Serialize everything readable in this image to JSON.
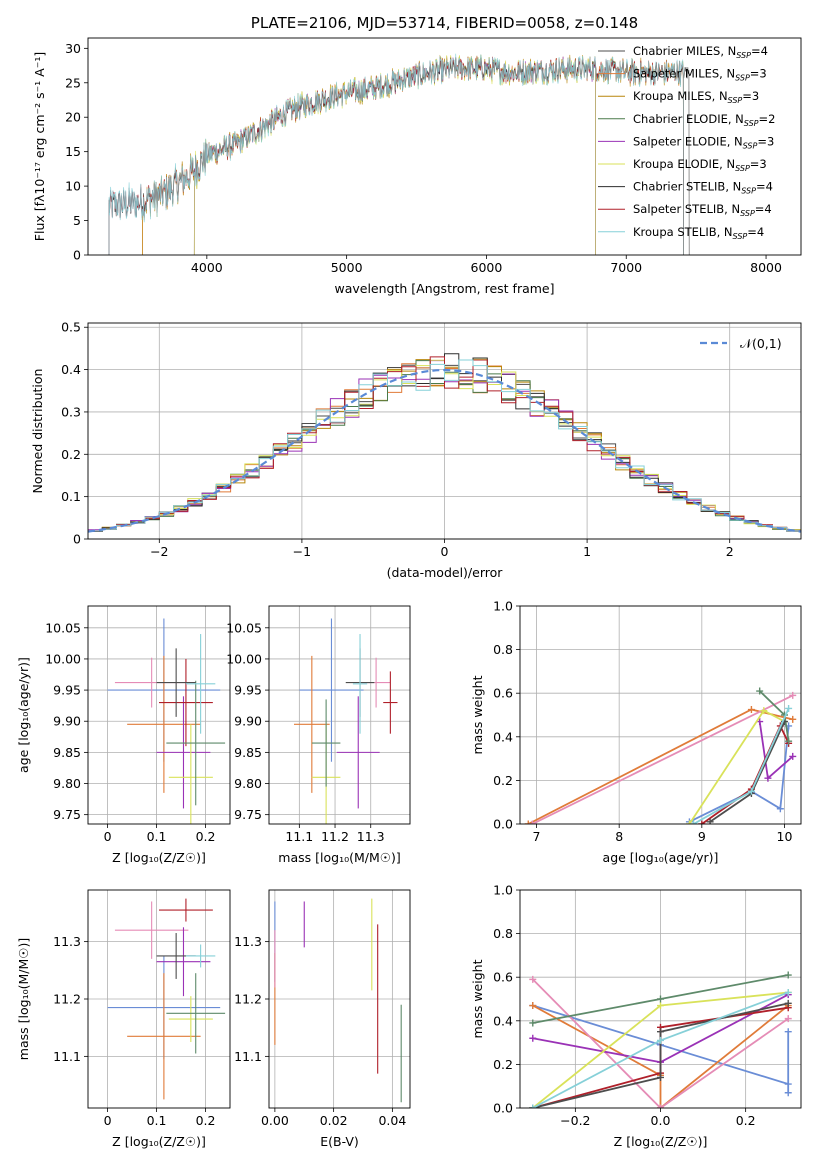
{
  "figure_title": "PLATE=2106, MJD=53714, FIBERID=0058, z=0.148",
  "colors": {
    "series": [
      "#4d4d4d",
      "#e07b39",
      "#b8860b",
      "#4a7a4a",
      "#9a32b6",
      "#d9e25a",
      "#2e2e2e",
      "#b0202a",
      "#86d0d8"
    ],
    "weights": [
      "#6a8dd6",
      "#e07b39",
      "#e58cb6",
      "#9a32b6",
      "#d9e25a",
      "#b0202a",
      "#5e8a6a",
      "#4d4d4d",
      "#86d0d8"
    ],
    "normal_curve": "#5a8ad6"
  },
  "chart_data": [
    {
      "id": "spectrum",
      "type": "line",
      "title": "PLATE=2106, MJD=53714, FIBERID=0058, z=0.148",
      "xlabel": "wavelength [Angstrom, rest frame]",
      "ylabel": "Flux [fλ10⁻¹⁷ erg cm⁻² s⁻¹ A⁻¹]",
      "xlim": [
        3150,
        8250
      ],
      "ylim": [
        0,
        31.5
      ],
      "xticks": [
        4000,
        5000,
        6000,
        7000,
        8000
      ],
      "yticks": [
        0,
        5,
        10,
        15,
        20,
        25,
        30
      ],
      "grid": false,
      "legend_position": "top-right",
      "x_range": [
        3300,
        7450
      ],
      "continuum": [
        [
          3300,
          7.2
        ],
        [
          3500,
          7.5
        ],
        [
          3700,
          9
        ],
        [
          3900,
          12
        ],
        [
          4000,
          14.5
        ],
        [
          4200,
          16
        ],
        [
          4400,
          18.5
        ],
        [
          4600,
          21
        ],
        [
          4800,
          22.5
        ],
        [
          5000,
          23.5
        ],
        [
          5200,
          24.2
        ],
        [
          5400,
          25.5
        ],
        [
          5600,
          26.5
        ],
        [
          5800,
          27.2
        ],
        [
          6000,
          27
        ],
        [
          6200,
          26.5
        ],
        [
          6400,
          26.8
        ],
        [
          6600,
          27
        ],
        [
          6800,
          27
        ],
        [
          7000,
          26.5
        ],
        [
          7200,
          26.5
        ],
        [
          7450,
          26.5
        ]
      ],
      "series": [
        {
          "name": "Chabrier MILES, N_SSP=4",
          "label_main": "Chabrier MILES, N",
          "label_sub": "SSP",
          "label_tail": "=4",
          "range": [
            3300,
            7450
          ]
        },
        {
          "name": "Salpeter MILES, N_SSP=3",
          "label_main": "Salpeter MILES, N",
          "label_sub": "SSP",
          "label_tail": "=3",
          "range": [
            3540,
            7410
          ]
        },
        {
          "name": "Kroupa MILES, N_SSP=3",
          "label_main": "Kroupa MILES, N",
          "label_sub": "SSP",
          "label_tail": "=3",
          "range": [
            3540,
            7410
          ]
        },
        {
          "name": "Chabrier ELODIE, N_SSP=2",
          "label_main": "Chabrier ELODIE, N",
          "label_sub": "SSP",
          "label_tail": "=2",
          "range": [
            3910,
            6780
          ]
        },
        {
          "name": "Salpeter ELODIE, N_SSP=3",
          "label_main": "Salpeter ELODIE, N",
          "label_sub": "SSP",
          "label_tail": "=3",
          "range": [
            3910,
            6780
          ]
        },
        {
          "name": "Kroupa ELODIE, N_SSP=3",
          "label_main": "Kroupa ELODIE, N",
          "label_sub": "SSP",
          "label_tail": "=3",
          "range": [
            3910,
            6780
          ]
        },
        {
          "name": "Chabrier STELIB, N_SSP=4",
          "label_main": "Chabrier STELIB, N",
          "label_sub": "SSP",
          "label_tail": "=4",
          "range": [
            3300,
            7410
          ]
        },
        {
          "name": "Salpeter STELIB, N_SSP=4",
          "label_main": "Salpeter STELIB, N",
          "label_sub": "SSP",
          "label_tail": "=4",
          "range": [
            3300,
            7410
          ]
        },
        {
          "name": "Kroupa STELIB, N_SSP=4",
          "label_main": "Kroupa STELIB, N",
          "label_sub": "SSP",
          "label_tail": "=4",
          "range": [
            3300,
            7410
          ]
        }
      ]
    },
    {
      "id": "residuals",
      "type": "line",
      "xlabel": "(data-model)/error",
      "ylabel": "Normed distribution",
      "xlim": [
        -2.5,
        2.5
      ],
      "ylim": [
        0,
        0.51
      ],
      "xticks": [
        -2,
        -1,
        0,
        1,
        2
      ],
      "yticks": [
        0.0,
        0.1,
        0.2,
        0.3,
        0.4,
        0.5
      ],
      "grid": true,
      "legend_position": "top-right",
      "legend_label": "𝒩(0,1)",
      "bin_width": 0.1,
      "curve": {
        "mu": 0,
        "sigma": 1
      }
    },
    {
      "id": "age-vs-Z",
      "type": "scatter",
      "xlabel": "Z [log₁₀(Z/Z☉)]",
      "ylabel": "age  [log₁₀(age/yr)]",
      "xlim": [
        -0.04,
        0.25
      ],
      "ylim": [
        9.735,
        10.085
      ],
      "xticks": [
        0.0,
        0.1,
        0.2
      ],
      "yticks": [
        9.75,
        9.8,
        9.85,
        9.9,
        9.95,
        10.0,
        10.05
      ],
      "ytick_labels": [
        "9.75",
        "9.80",
        "9.85",
        "9.90",
        "9.95",
        "10.00",
        "10.05"
      ],
      "grid": true,
      "points": [
        {
          "x": 0.115,
          "xerr": 0.115,
          "y": 9.95,
          "yerr": 0.115
        },
        {
          "x": 0.115,
          "xerr": 0.075,
          "y": 9.895,
          "yerr": 0.11
        },
        {
          "x": 0.09,
          "xerr": 0.075,
          "y": 9.962,
          "yerr": 0.04
        },
        {
          "x": 0.155,
          "xerr": 0.055,
          "y": 9.85,
          "yerr": 0.09
        },
        {
          "x": 0.17,
          "xerr": 0.045,
          "y": 9.81,
          "yerr": 0.085
        },
        {
          "x": 0.16,
          "xerr": 0.055,
          "y": 9.93,
          "yerr": 0.07
        },
        {
          "x": 0.18,
          "xerr": 0.06,
          "y": 9.865,
          "yerr": 0.1
        },
        {
          "x": 0.14,
          "xerr": 0.04,
          "y": 9.962,
          "yerr": 0.055
        },
        {
          "x": 0.19,
          "xerr": 0.03,
          "y": 9.96,
          "yerr": 0.08
        }
      ]
    },
    {
      "id": "age-vs-mass",
      "type": "scatter",
      "xlabel": "mass [log₁₀(M/M☉)]",
      "ylabel": "",
      "xlim": [
        11.015,
        11.41
      ],
      "ylim": [
        9.735,
        10.085
      ],
      "xticks": [
        11.1,
        11.2,
        11.3
      ],
      "yticks": [
        9.75,
        9.8,
        9.85,
        9.9,
        9.95,
        10.0,
        10.05
      ],
      "ytick_labels": [
        "9.75",
        "9.80",
        "9.85",
        "9.90",
        "9.95",
        "10.00",
        "10.05"
      ],
      "grid": true,
      "points": [
        {
          "x": 11.19,
          "xerr": 0.09,
          "y": 9.95,
          "yerr": 0.115
        },
        {
          "x": 11.135,
          "xerr": 0.05,
          "y": 9.895,
          "yerr": 0.11
        },
        {
          "x": 11.315,
          "xerr": 0.04,
          "y": 9.962,
          "yerr": 0.04
        },
        {
          "x": 11.265,
          "xerr": 0.06,
          "y": 9.85,
          "yerr": 0.09
        },
        {
          "x": 11.175,
          "xerr": 0.04,
          "y": 9.81,
          "yerr": 0.085
        },
        {
          "x": 11.355,
          "xerr": 0.02,
          "y": 9.93,
          "yerr": 0.05
        },
        {
          "x": 11.175,
          "xerr": 0.04,
          "y": 9.865,
          "yerr": 0.07
        },
        {
          "x": 11.27,
          "xerr": 0.04,
          "y": 9.962,
          "yerr": 0.055
        },
        {
          "x": 11.27,
          "xerr": 0.02,
          "y": 9.96,
          "yerr": 0.08
        }
      ]
    },
    {
      "id": "mass-weight-vs-age",
      "type": "line",
      "xlabel": "age  [log₁₀(age/yr)]",
      "ylabel": "mass weight",
      "xlim": [
        6.8,
        10.2
      ],
      "ylim": [
        0,
        1.0
      ],
      "xticks": [
        7,
        8,
        9,
        10
      ],
      "yticks": [
        0.0,
        0.2,
        0.4,
        0.6,
        0.8,
        1.0
      ],
      "ytick_labels": [
        "0.0",
        "0.2",
        "0.4",
        "0.6",
        "0.8",
        "1.0"
      ],
      "grid": true,
      "series": [
        {
          "points": [
            [
              8.85,
              0.01
            ],
            [
              9.6,
              0.15
            ],
            [
              9.95,
              0.07
            ],
            [
              10.05,
              0.45
            ]
          ]
        },
        {
          "points": [
            [
              6.9,
              0.0
            ],
            [
              9.6,
              0.525
            ],
            [
              10.1,
              0.48
            ]
          ]
        },
        {
          "points": [
            [
              6.95,
              0.0
            ],
            [
              10.1,
              0.59
            ]
          ]
        },
        {
          "points": [
            [
              9.7,
              0.47
            ],
            [
              9.8,
              0.21
            ],
            [
              10.1,
              0.31
            ]
          ]
        },
        {
          "points": [
            [
              8.85,
              0.0
            ],
            [
              9.75,
              0.52
            ],
            [
              10.0,
              0.47
            ]
          ]
        },
        {
          "points": [
            [
              9.0,
              0.0
            ],
            [
              9.6,
              0.16
            ],
            [
              9.95,
              0.45
            ],
            [
              10.05,
              0.37
            ]
          ]
        },
        {
          "points": [
            [
              9.7,
              0.61
            ],
            [
              10.0,
              0.5
            ],
            [
              10.05,
              0.38
            ]
          ]
        },
        {
          "points": [
            [
              9.1,
              0.01
            ],
            [
              9.6,
              0.14
            ],
            [
              10.0,
              0.47
            ]
          ]
        },
        {
          "points": [
            [
              8.9,
              0.0
            ],
            [
              9.6,
              0.15
            ],
            [
              10.05,
              0.53
            ]
          ]
        }
      ]
    },
    {
      "id": "mass-vs-Z",
      "type": "scatter",
      "xlabel": "Z [log₁₀(Z/Z☉)]",
      "ylabel": "mass [log₁₀(M/M☉)]",
      "xlim": [
        -0.04,
        0.25
      ],
      "ylim": [
        11.01,
        11.39
      ],
      "xticks": [
        0.0,
        0.1,
        0.2
      ],
      "yticks": [
        11.1,
        11.2,
        11.3
      ],
      "ytick_labels": [
        "11.1",
        "11.2",
        "11.3"
      ],
      "grid": true,
      "points": [
        {
          "x": 0.115,
          "xerr": 0.115,
          "y": 11.185,
          "yerr": 0.09
        },
        {
          "x": 0.115,
          "xerr": 0.075,
          "y": 11.135,
          "yerr": 0.11
        },
        {
          "x": 0.09,
          "xerr": 0.075,
          "y": 11.32,
          "yerr": 0.05
        },
        {
          "x": 0.155,
          "xerr": 0.055,
          "y": 11.265,
          "yerr": 0.06
        },
        {
          "x": 0.17,
          "xerr": 0.045,
          "y": 11.165,
          "yerr": 0.04
        },
        {
          "x": 0.16,
          "xerr": 0.055,
          "y": 11.355,
          "yerr": 0.02
        },
        {
          "x": 0.18,
          "xerr": 0.06,
          "y": 11.175,
          "yerr": 0.07
        },
        {
          "x": 0.14,
          "xerr": 0.04,
          "y": 11.275,
          "yerr": 0.04
        },
        {
          "x": 0.19,
          "xerr": 0.03,
          "y": 11.275,
          "yerr": 0.02
        }
      ]
    },
    {
      "id": "mass-vs-EBV",
      "type": "scatter",
      "xlabel": "E(B-V)",
      "ylabel": "",
      "xlim": [
        -0.002,
        0.046
      ],
      "ylim": [
        11.01,
        11.39
      ],
      "xticks": [
        0.0,
        0.02,
        0.04
      ],
      "xtick_labels": [
        "0.00",
        "0.02",
        "0.04"
      ],
      "yticks": [
        11.1,
        11.2,
        11.3
      ],
      "ytick_labels": [
        "11.1",
        "11.2",
        "11.3"
      ],
      "grid": true,
      "points": [
        {
          "x": 0.0,
          "y": 11.3,
          "yerr": 0.07
        },
        {
          "x": 0.0,
          "y": 11.2,
          "yerr": 0.08
        },
        {
          "x": 0.0,
          "y": 11.27,
          "yerr": 0.05
        },
        {
          "x": 0.01,
          "y": 11.33,
          "yerr": 0.04
        },
        {
          "x": 0.033,
          "y": 11.295,
          "yerr": 0.08
        },
        {
          "x": 0.035,
          "y": 11.2,
          "yerr": 0.13
        },
        {
          "x": 0.043,
          "y": 11.105,
          "yerr": 0.085
        }
      ]
    },
    {
      "id": "mass-weight-vs-Z",
      "type": "line",
      "xlabel": "Z [log₁₀(Z/Z☉)]",
      "ylabel": "mass weight",
      "xlim": [
        -0.33,
        0.33
      ],
      "ylim": [
        0,
        1.0
      ],
      "xticks": [
        -0.2,
        0.0,
        0.2
      ],
      "xtick_labels": [
        "−0.2",
        "0.0",
        "0.2"
      ],
      "yticks": [
        0.0,
        0.2,
        0.4,
        0.6,
        0.8,
        1.0
      ],
      "ytick_labels": [
        "0.0",
        "0.2",
        "0.4",
        "0.6",
        "0.8",
        "1.0"
      ],
      "grid": true,
      "series": [
        {
          "points": [
            [
              -0.3,
              0.47
            ],
            [
              0.0,
              0.29
            ],
            [
              0.3,
              0.11
            ],
            [
              0.3,
              0.07
            ],
            [
              0.3,
              0.35
            ]
          ]
        },
        {
          "points": [
            [
              -0.3,
              0.47
            ],
            [
              0.0,
              0.15
            ],
            [
              0.0,
              0.0
            ],
            [
              0.3,
              0.47
            ]
          ]
        },
        {
          "points": [
            [
              -0.3,
              0.59
            ],
            [
              0.0,
              0.0
            ],
            [
              0.3,
              0.41
            ]
          ]
        },
        {
          "points": [
            [
              -0.3,
              0.32
            ],
            [
              0.0,
              0.21
            ],
            [
              0.3,
              0.52
            ]
          ]
        },
        {
          "points": [
            [
              -0.3,
              0.0
            ],
            [
              0.0,
              0.47
            ],
            [
              0.3,
              0.53
            ]
          ]
        },
        {
          "points": [
            [
              -0.3,
              0.0
            ],
            [
              0.0,
              0.16
            ],
            [
              0.0,
              0.37
            ],
            [
              0.3,
              0.46
            ]
          ]
        },
        {
          "points": [
            [
              -0.3,
              0.39
            ],
            [
              0.0,
              0.5
            ],
            [
              0.3,
              0.61
            ]
          ]
        },
        {
          "points": [
            [
              -0.3,
              0.0
            ],
            [
              0.0,
              0.14
            ],
            [
              0.0,
              0.35
            ],
            [
              0.3,
              0.48
            ]
          ]
        },
        {
          "points": [
            [
              -0.3,
              0.0
            ],
            [
              0.0,
              0.31
            ],
            [
              0.3,
              0.53
            ]
          ]
        }
      ]
    }
  ]
}
